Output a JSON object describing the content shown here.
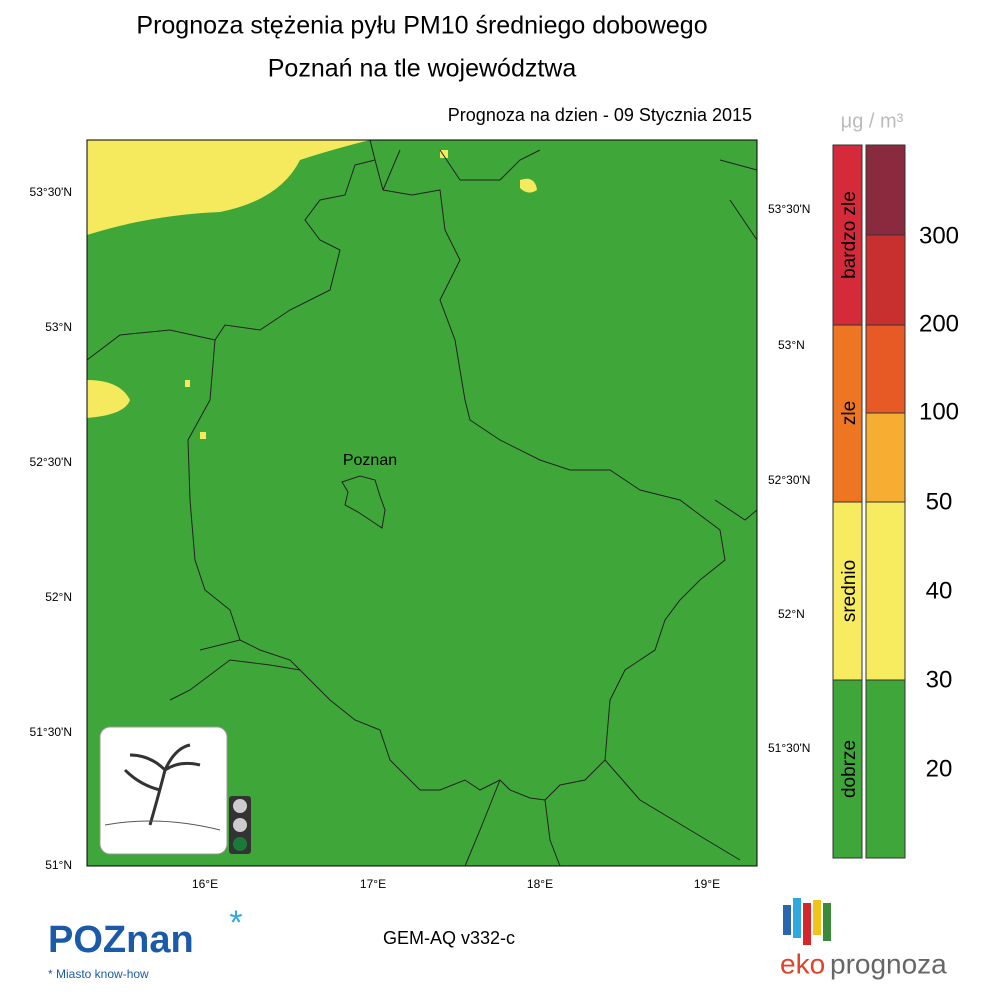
{
  "header": {
    "title": "Prognoza stężenia pyłu PM10 średniego dobowego",
    "subtitle": "Poznań na tle województwa",
    "date": "Prognoza na dzien -  09 Stycznia 2015"
  },
  "map": {
    "city_label": "Poznan",
    "lat_labels_left": [
      "53°30'N",
      "53°N",
      "52°30'N",
      "52°N",
      "51°30'N",
      "51°N"
    ],
    "lat_labels_right": [
      "53°30'N",
      "53°N",
      "52°30'N",
      "52°N",
      "51°30'N"
    ],
    "lon_labels": [
      "16°E",
      "17°E",
      "18°E",
      "19°E"
    ]
  },
  "legend": {
    "unit": "μg / m³",
    "categories": [
      "bardzo zle",
      "zle",
      "srednio",
      "dobrze"
    ],
    "scale_labels": [
      "300",
      "200",
      "100",
      "50",
      "40",
      "30",
      "20"
    ]
  },
  "footer": {
    "model": "GEM-AQ v332-c",
    "logo_left": "POZnan",
    "tagline": "Miasto know-how",
    "logo_right_1": "eko",
    "logo_right_2": "prognoza"
  }
}
